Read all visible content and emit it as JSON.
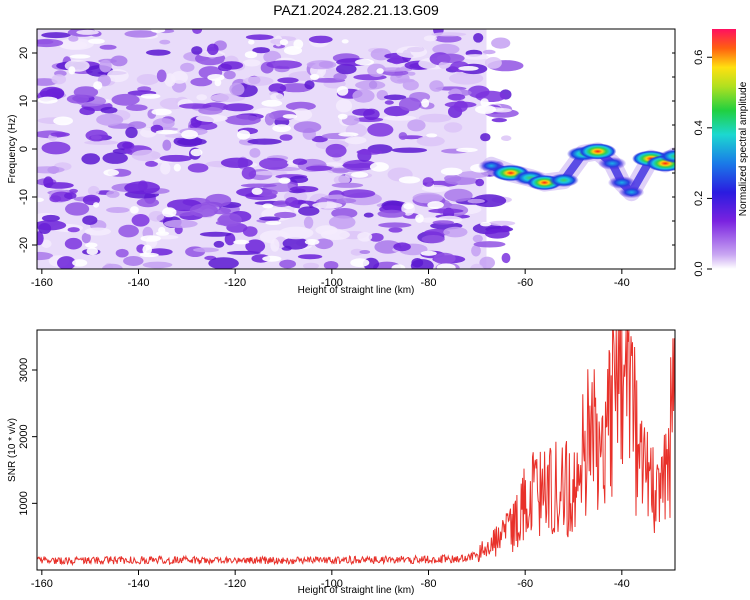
{
  "title": "PAZ1.2024.282.21.13.G09",
  "colors": {
    "noise": "#9a55e0",
    "axis": "#000000",
    "snr_line": "#e8312a"
  },
  "chart_data": [
    {
      "type": "heatmap",
      "xlabel": "Height of straight line (km)",
      "ylabel": "Frequency (Hz)",
      "xlim": [
        -161,
        -29
      ],
      "ylim": [
        -25,
        25
      ],
      "xticks": [
        -160,
        -140,
        -120,
        -100,
        -80,
        -60,
        -40
      ],
      "yticks": [
        -20,
        -10,
        0,
        10,
        20
      ],
      "colorbar": {
        "label": "Normalized spectral amplitude",
        "range": [
          0.0,
          0.68
        ],
        "ticks": [
          0.0,
          0.2,
          0.4,
          0.6
        ],
        "colormap": "rainbow (purple-blue-cyan-green-yellow-red-pink)"
      },
      "noise_region": {
        "x_range": [
          -161,
          -68
        ],
        "y_range": [
          -25,
          25
        ],
        "amplitude": [
          0.0,
          0.15
        ]
      },
      "signal_track": [
        {
          "x": -67,
          "y": -3.5,
          "amp": 0.22
        },
        {
          "x": -63,
          "y": -5.0,
          "amp": 0.62
        },
        {
          "x": -59,
          "y": -6.0,
          "amp": 0.45
        },
        {
          "x": -56,
          "y": -7.0,
          "amp": 0.52
        },
        {
          "x": -52,
          "y": -6.5,
          "amp": 0.35
        },
        {
          "x": -48,
          "y": -1.0,
          "amp": 0.45
        },
        {
          "x": -45,
          "y": -0.5,
          "amp": 0.62
        },
        {
          "x": -42,
          "y": -3.0,
          "amp": 0.3
        },
        {
          "x": -40,
          "y": -7.0,
          "amp": 0.28
        },
        {
          "x": -38,
          "y": -9.0,
          "amp": 0.2
        },
        {
          "x": -34,
          "y": -2.0,
          "amp": 0.62
        },
        {
          "x": -31,
          "y": -3.0,
          "amp": 0.65
        },
        {
          "x": -29,
          "y": -1.5,
          "amp": 0.4
        }
      ]
    },
    {
      "type": "line",
      "xlabel": "Height of straight line (km)",
      "ylabel": "SNR (10 * v/v)",
      "xlim": [
        -161,
        -29
      ],
      "ylim": [
        0,
        3600
      ],
      "xticks": [
        -160,
        -140,
        -120,
        -100,
        -80,
        -60,
        -40
      ],
      "yticks": [
        1000,
        2000,
        3000
      ],
      "series": [
        {
          "points": [
            [
              -161,
              150
            ],
            [
              -150,
              140
            ],
            [
              -140,
              150
            ],
            [
              -130,
              145
            ],
            [
              -120,
              150
            ],
            [
              -110,
              145
            ],
            [
              -100,
              150
            ],
            [
              -90,
              150
            ],
            [
              -80,
              160
            ],
            [
              -72,
              170
            ],
            [
              -68,
              300
            ],
            [
              -65,
              500
            ],
            [
              -62,
              700
            ],
            [
              -60,
              1000
            ],
            [
              -58,
              1200
            ],
            [
              -55,
              1150
            ],
            [
              -52,
              1300
            ],
            [
              -50,
              1100
            ],
            [
              -48,
              1800
            ],
            [
              -46,
              2000
            ],
            [
              -44,
              2100
            ],
            [
              -42,
              2700
            ],
            [
              -40,
              3600
            ],
            [
              -38,
              2400
            ],
            [
              -36,
              1500
            ],
            [
              -34,
              1200
            ],
            [
              -32,
              1000
            ],
            [
              -30,
              1900
            ],
            [
              -29,
              2900
            ]
          ]
        }
      ]
    }
  ]
}
